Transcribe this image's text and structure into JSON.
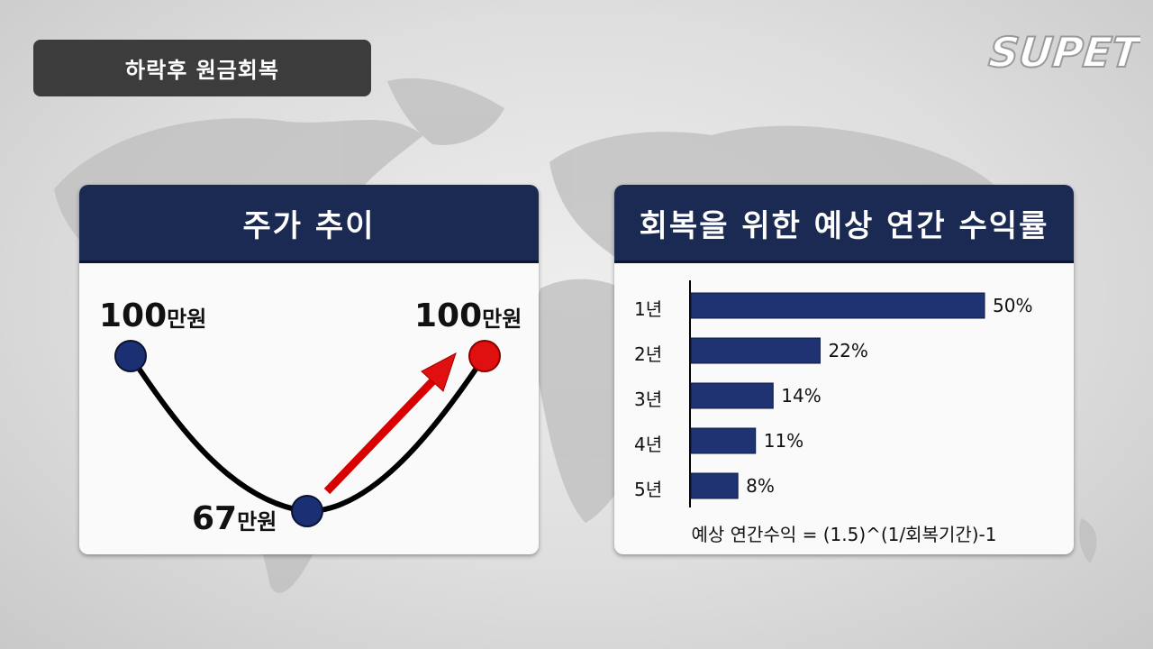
{
  "header": {
    "title": "하락후 원금회복"
  },
  "logo": {
    "text": "SUPETV"
  },
  "left_panel": {
    "title": "주가 추이",
    "points": [
      {
        "value": "100",
        "unit": "만원",
        "color": "#1b2f73"
      },
      {
        "value": "67",
        "unit": "만원",
        "color": "#1b2f73"
      },
      {
        "value": "100",
        "unit": "만원",
        "color": "#e01010"
      }
    ]
  },
  "right_panel": {
    "title": "회복을 위한 예상 연간 수익률",
    "formula": "예상 연간수익 = (1.5)^(1/회복기간)-1"
  },
  "chart_data": {
    "type": "bar",
    "orientation": "horizontal",
    "categories": [
      "1년",
      "2년",
      "3년",
      "4년",
      "5년"
    ],
    "values": [
      50,
      22,
      14,
      11,
      8
    ],
    "value_labels": [
      "50%",
      "22%",
      "14%",
      "11%",
      "8%"
    ],
    "bar_color": "#1f3373"
  }
}
